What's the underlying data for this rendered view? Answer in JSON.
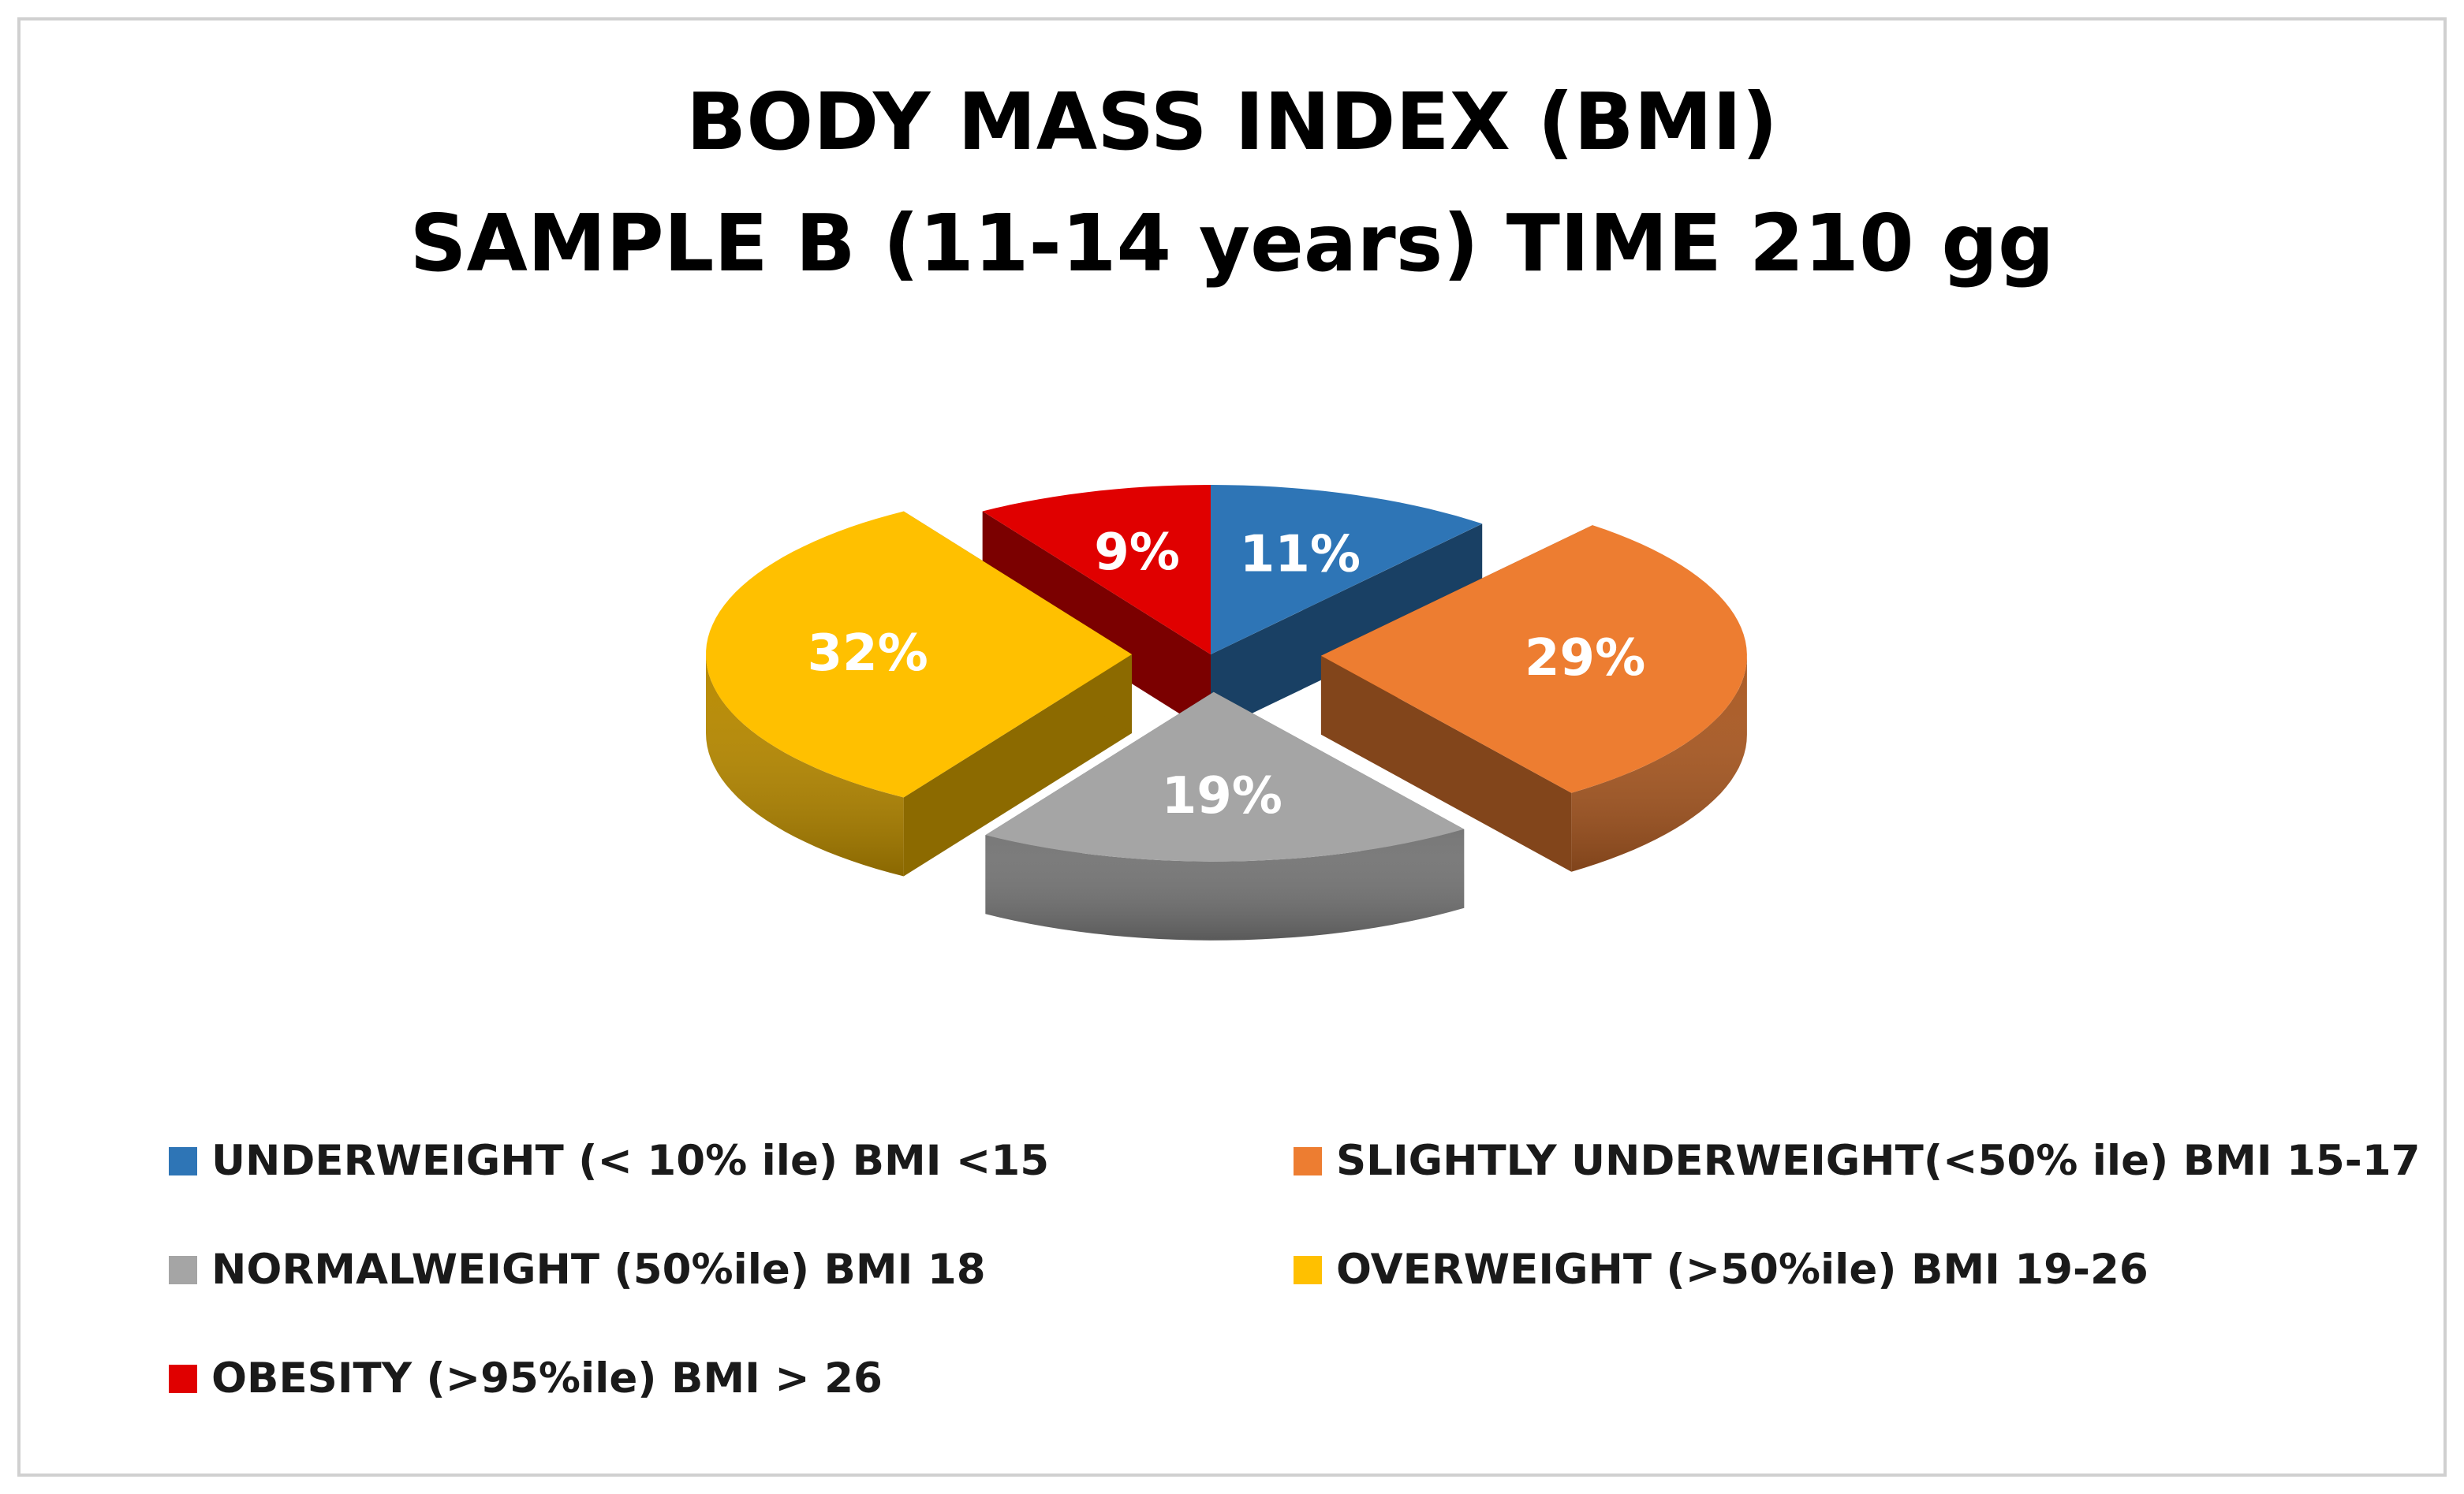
{
  "chart_data": {
    "type": "pie",
    "style": "3d-exploded",
    "title": "BODY MASS INDEX (BMI)",
    "subtitle": "SAMPLE B (11-14 years) TIME 210 gg",
    "legend_position": "bottom",
    "slices": [
      {
        "label": "UNDERWEIGHT (< 10% ile) BMI <15",
        "value": 11,
        "data_label": "11%",
        "color": "#2E75B6"
      },
      {
        "label": "SLIGHTLY UNDERWEIGHT(<50% ile)  BMI 15-17",
        "value": 29,
        "data_label": "29%",
        "color": "#ED7D31"
      },
      {
        "label": "NORMALWEIGHT (50%ile)  BMI 18",
        "value": 19,
        "data_label": "19%",
        "color": "#A5A5A5"
      },
      {
        "label": "OVERWEIGHT (>50%ile) BMI 19-26",
        "value": 32,
        "data_label": "32%",
        "color": "#FFC000"
      },
      {
        "label": "OBESITY (>95%ile) BMI > 26",
        "value": 9,
        "data_label": "9%",
        "color": "#E00000"
      }
    ]
  }
}
